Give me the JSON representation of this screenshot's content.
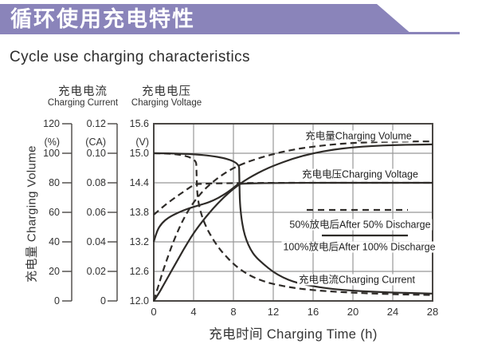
{
  "banner": {
    "title": "循环使用充电特性",
    "color": "#8A84BA"
  },
  "subtitle": "Cycle use charging characteristics",
  "chart_data": {
    "type": "line",
    "x_axis": {
      "title": "充电时间 Charging Time (h)",
      "ticks": [
        "0",
        "4",
        "8",
        "12",
        "16",
        "20",
        "24",
        "28"
      ]
    },
    "x_range": [
      0,
      28
    ],
    "x_grid": [
      4,
      8,
      12,
      16,
      20,
      24
    ],
    "y_grid": [
      15.0,
      14.4,
      13.8,
      13.2,
      12.6
    ],
    "scales": {
      "percent": [
        0,
        120
      ],
      "ca": [
        0,
        0.12
      ],
      "volt": [
        12,
        15.6
      ]
    },
    "y_axes": [
      {
        "name": "charging-volume",
        "title_zh": "充电量",
        "title_en": "Charging Volume",
        "unit": "(%)",
        "ticks": [
          "120",
          "100",
          "80",
          "60",
          "40",
          "20",
          "0"
        ]
      },
      {
        "name": "charging-current",
        "title_zh": "充电电流",
        "title_en": "Charging Current",
        "unit": "(CA)",
        "ticks": [
          "0.12",
          "0.10",
          "0.08",
          "0.06",
          "0.04",
          "0.02",
          "0"
        ]
      },
      {
        "name": "charging-voltage",
        "title_zh": "充电电压",
        "title_en": "Charging Voltage",
        "unit": "(V)",
        "ticks": [
          "15.6",
          "15.0",
          "14.4",
          "13.8",
          "13.2",
          "12.6",
          "12.0"
        ]
      }
    ],
    "series": [
      {
        "name": "charging-voltage-after-100-discharge",
        "scale": "volt",
        "style": "solid",
        "points": [
          [
            0,
            13.2
          ],
          [
            0.3,
            13.42
          ],
          [
            0.8,
            13.58
          ],
          [
            1.5,
            13.7
          ],
          [
            2.5,
            13.8
          ],
          [
            3.5,
            13.88
          ],
          [
            4.5,
            13.94
          ],
          [
            5.5,
            14.0
          ],
          [
            6.5,
            14.09
          ],
          [
            7.5,
            14.22
          ],
          [
            8.2,
            14.33
          ],
          [
            8.6,
            14.4
          ],
          [
            28,
            14.4
          ]
        ]
      },
      {
        "name": "charging-volume-after-100-discharge",
        "scale": "percent",
        "style": "solid",
        "points": [
          [
            0,
            0
          ],
          [
            0.5,
            5
          ],
          [
            1,
            11
          ],
          [
            2,
            23
          ],
          [
            3,
            35
          ],
          [
            4,
            46
          ],
          [
            5,
            55
          ],
          [
            6,
            63
          ],
          [
            7,
            70
          ],
          [
            8,
            76
          ],
          [
            9,
            81
          ],
          [
            10,
            85
          ],
          [
            11,
            88.5
          ],
          [
            12,
            91.5
          ],
          [
            14,
            96.5
          ],
          [
            16,
            100
          ],
          [
            18,
            102.5
          ],
          [
            20,
            104
          ],
          [
            22,
            105
          ],
          [
            24,
            105.5
          ],
          [
            26,
            105.8
          ],
          [
            28,
            106
          ]
        ]
      },
      {
        "name": "charging-current-after-100-discharge",
        "scale": "ca",
        "style": "solid",
        "points": [
          [
            0,
            0.1
          ],
          [
            8.55,
            0.1
          ],
          [
            8.6,
            0.08
          ],
          [
            8.65,
            0.066
          ],
          [
            8.8,
            0.056
          ],
          [
            9,
            0.048
          ],
          [
            9.3,
            0.041
          ],
          [
            9.7,
            0.035
          ],
          [
            10.2,
            0.03
          ],
          [
            11,
            0.025
          ],
          [
            12,
            0.0195
          ],
          [
            13,
            0.0158
          ],
          [
            14,
            0.013
          ],
          [
            15,
            0.0113
          ],
          [
            16,
            0.01
          ],
          [
            18,
            0.008
          ],
          [
            20,
            0.0069
          ],
          [
            22,
            0.0062
          ],
          [
            24,
            0.0057
          ],
          [
            26,
            0.0053
          ],
          [
            28,
            0.005
          ]
        ]
      },
      {
        "name": "charging-current-after-50-discharge",
        "scale": "ca",
        "style": "dashed",
        "points": [
          [
            0,
            0.1
          ],
          [
            4.25,
            0.1
          ],
          [
            4.3,
            0.085
          ],
          [
            4.35,
            0.074
          ],
          [
            4.5,
            0.066
          ],
          [
            4.8,
            0.058
          ],
          [
            5.2,
            0.051
          ],
          [
            5.7,
            0.0445
          ],
          [
            6.3,
            0.038
          ],
          [
            7,
            0.032
          ],
          [
            8,
            0.025
          ],
          [
            9,
            0.0198
          ],
          [
            10,
            0.016
          ],
          [
            11,
            0.0134
          ],
          [
            12,
            0.0114
          ],
          [
            14,
            0.0088
          ],
          [
            16,
            0.0073
          ],
          [
            18,
            0.0063
          ],
          [
            20,
            0.0056
          ],
          [
            22,
            0.005
          ],
          [
            24,
            0.0046
          ],
          [
            26,
            0.0042
          ],
          [
            28,
            0.004
          ]
        ]
      },
      {
        "name": "charging-voltage-after-50-discharge",
        "scale": "volt",
        "style": "dashed",
        "points": [
          [
            0,
            13.75
          ],
          [
            1,
            13.93
          ],
          [
            2,
            14.08
          ],
          [
            3,
            14.22
          ],
          [
            3.8,
            14.33
          ],
          [
            4.4,
            14.4
          ],
          [
            28,
            14.4
          ]
        ]
      },
      {
        "name": "charging-volume-after-50-discharge",
        "scale": "percent",
        "style": "dashed",
        "points": [
          [
            0,
            0
          ],
          [
            0.5,
            11
          ],
          [
            1,
            22
          ],
          [
            2,
            41
          ],
          [
            3,
            56
          ],
          [
            4,
            67
          ],
          [
            5,
            75
          ],
          [
            6,
            81
          ],
          [
            7,
            86
          ],
          [
            8,
            90
          ],
          [
            9,
            93
          ],
          [
            10,
            95.5
          ],
          [
            12,
            99.5
          ],
          [
            14,
            102.5
          ],
          [
            16,
            104.5
          ],
          [
            18,
            106
          ],
          [
            20,
            107
          ],
          [
            22,
            107.5
          ],
          [
            24,
            107.8
          ],
          [
            26,
            108
          ],
          [
            28,
            108
          ]
        ]
      }
    ],
    "annotations": [
      {
        "name": "volume-curve-label",
        "text": "充电量Charging Volume",
        "x": 450,
        "y": 169
      },
      {
        "name": "voltage-curve-label",
        "text": "充电电压Charging Voltage",
        "x": 452,
        "y": 217
      },
      {
        "name": "current-curve-label",
        "text": "充电电流Charging Current",
        "x": 448,
        "y": 349
      }
    ],
    "legend": [
      {
        "name": "legend-after-50-discharge",
        "style": "dashed",
        "label": "50%放电后After 50% Discharge"
      },
      {
        "name": "legend-after-100-discharge",
        "style": "solid",
        "label": "100%放电后After 100% Discharge"
      }
    ],
    "colors": {
      "curve": "#2e2b28",
      "grid": "#989898",
      "frame": "#4a4744",
      "text": "#333333"
    }
  }
}
